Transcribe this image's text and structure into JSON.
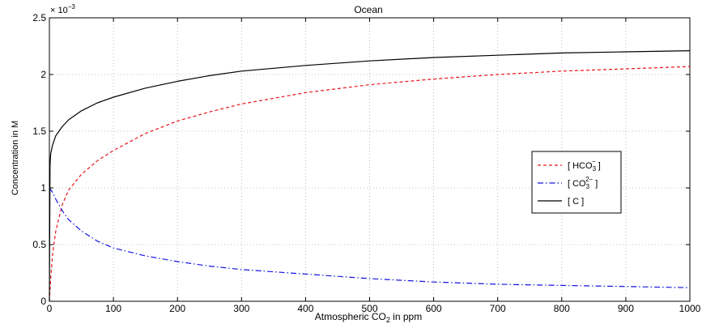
{
  "chart_data": {
    "type": "line",
    "title": "Ocean",
    "xlabel_main": "Atmospheric CO",
    "xlabel_sub": "2",
    "xlabel_tail": " in ppm",
    "ylabel": "Concentration in M",
    "y_exponent_label": "× 10",
    "y_exponent_power": "−3",
    "xlim": [
      0,
      1000
    ],
    "ylim": [
      0,
      2.5
    ],
    "x_ticks": [
      0,
      100,
      200,
      300,
      400,
      500,
      600,
      700,
      800,
      900,
      1000
    ],
    "y_ticks": [
      0,
      0.5,
      1,
      1.5,
      2,
      2.5
    ],
    "y_tick_labels": [
      "0",
      "0.5",
      "1",
      "1.5",
      "2",
      "2.5"
    ],
    "grid": true,
    "legend_position": "center-right",
    "series": [
      {
        "name": "[ HCO3− ]",
        "legend_main": "[ HCO",
        "legend_sub": "3",
        "legend_sup": "−",
        "legend_tail": " ]",
        "color": "#e8141a",
        "dash": "4,3",
        "x": [
          0,
          2,
          5,
          10,
          20,
          30,
          50,
          75,
          100,
          150,
          200,
          250,
          300,
          400,
          500,
          600,
          700,
          800,
          900,
          1000
        ],
        "y": [
          0.0,
          0.2,
          0.42,
          0.62,
          0.85,
          0.98,
          1.12,
          1.24,
          1.33,
          1.48,
          1.59,
          1.67,
          1.74,
          1.84,
          1.91,
          1.96,
          2.0,
          2.03,
          2.05,
          2.07
        ]
      },
      {
        "name": "[ CO32− ]",
        "legend_main": "[ CO",
        "legend_sub": "3",
        "legend_sup": "2−",
        "legend_tail": " ]",
        "color": "#1414e0",
        "dash": "7,3,1.5,3",
        "x": [
          0,
          5,
          10,
          20,
          30,
          50,
          75,
          100,
          150,
          200,
          250,
          300,
          400,
          500,
          600,
          700,
          800,
          900,
          1000
        ],
        "y": [
          1.0,
          0.96,
          0.9,
          0.8,
          0.72,
          0.62,
          0.53,
          0.47,
          0.4,
          0.35,
          0.31,
          0.28,
          0.24,
          0.2,
          0.17,
          0.15,
          0.14,
          0.13,
          0.12
        ]
      },
      {
        "name": "[ C ]",
        "legend_main": "[ C ]",
        "legend_sub": "",
        "legend_sup": "",
        "legend_tail": "",
        "color": "#000000",
        "dash": "",
        "x": [
          0,
          1,
          2,
          5,
          10,
          20,
          30,
          50,
          75,
          100,
          150,
          200,
          250,
          300,
          400,
          500,
          600,
          700,
          800,
          900,
          1000
        ],
        "y": [
          0.0,
          1.2,
          1.3,
          1.38,
          1.46,
          1.54,
          1.6,
          1.68,
          1.75,
          1.8,
          1.88,
          1.94,
          1.99,
          2.03,
          2.08,
          2.12,
          2.15,
          2.17,
          2.19,
          2.2,
          2.21
        ]
      }
    ]
  }
}
